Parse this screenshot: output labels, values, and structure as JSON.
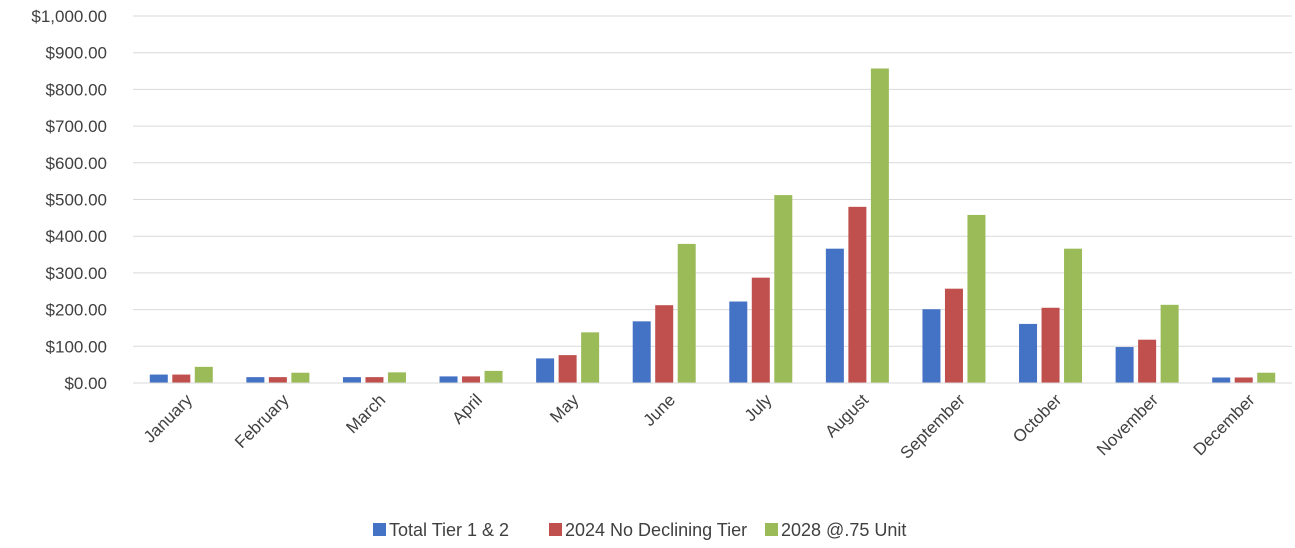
{
  "chart_data": {
    "type": "bar",
    "categories": [
      "January",
      "February",
      "March",
      "April",
      "May",
      "June",
      "July",
      "August",
      "September",
      "October",
      "November",
      "December"
    ],
    "series": [
      {
        "name": "Total Tier 1 & 2",
        "color": "#4472C4",
        "values": [
          23,
          16,
          16,
          18,
          67,
          168,
          222,
          366,
          201,
          161,
          98,
          15
        ]
      },
      {
        "name": "2024 No Declining Tier",
        "color": "#C0504D",
        "values": [
          23,
          16,
          16,
          18,
          76,
          212,
          287,
          480,
          257,
          205,
          118,
          15
        ]
      },
      {
        "name": "2028 @.75 Unit",
        "color": "#9BBB59",
        "values": [
          44,
          28,
          29,
          33,
          138,
          379,
          512,
          857,
          458,
          366,
          213,
          28
        ]
      }
    ],
    "ylim": [
      0,
      1000
    ],
    "yticks": [
      0,
      100,
      200,
      300,
      400,
      500,
      600,
      700,
      800,
      900,
      1000
    ],
    "ytick_labels": [
      "$0.00",
      "$100.00",
      "$200.00",
      "$300.00",
      "$400.00",
      "$500.00",
      "$600.00",
      "$700.00",
      "$800.00",
      "$900.00",
      "$1,000.00"
    ],
    "grid": true,
    "legend_position": "bottom",
    "title": "",
    "xlabel": "",
    "ylabel": ""
  }
}
